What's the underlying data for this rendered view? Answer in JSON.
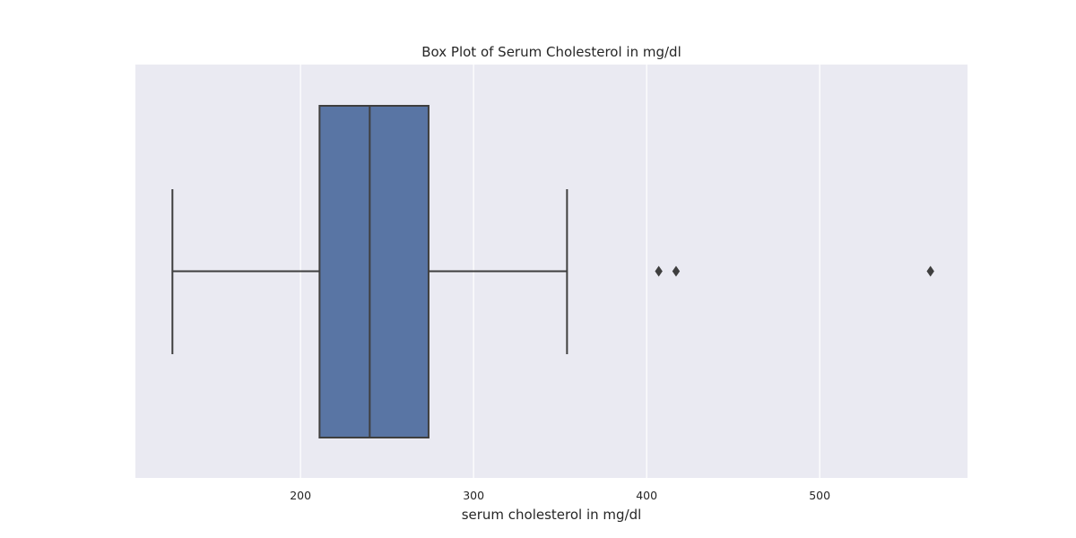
{
  "chart_data": {
    "type": "box",
    "title": "Box Plot of Serum Cholesterol in mg/dl",
    "xlabel": "serum cholesterol in mg/dl",
    "ylabel": "",
    "orientation": "horizontal",
    "xlim": [
      104.6,
      585.4
    ],
    "xticks": [
      200,
      300,
      400,
      500
    ],
    "xtick_labels": [
      "200",
      "300",
      "400",
      "500"
    ],
    "grid": true,
    "box": {
      "whisker_low": 126,
      "q1": 211,
      "median": 240,
      "q3": 274,
      "whisker_high": 354,
      "outliers": [
        407,
        417,
        564
      ]
    },
    "colors": {
      "box_fill": "#5975a4",
      "edge": "#3f3f3f",
      "plot_background": "#eaeaf2",
      "grid": "#ffffff"
    }
  }
}
